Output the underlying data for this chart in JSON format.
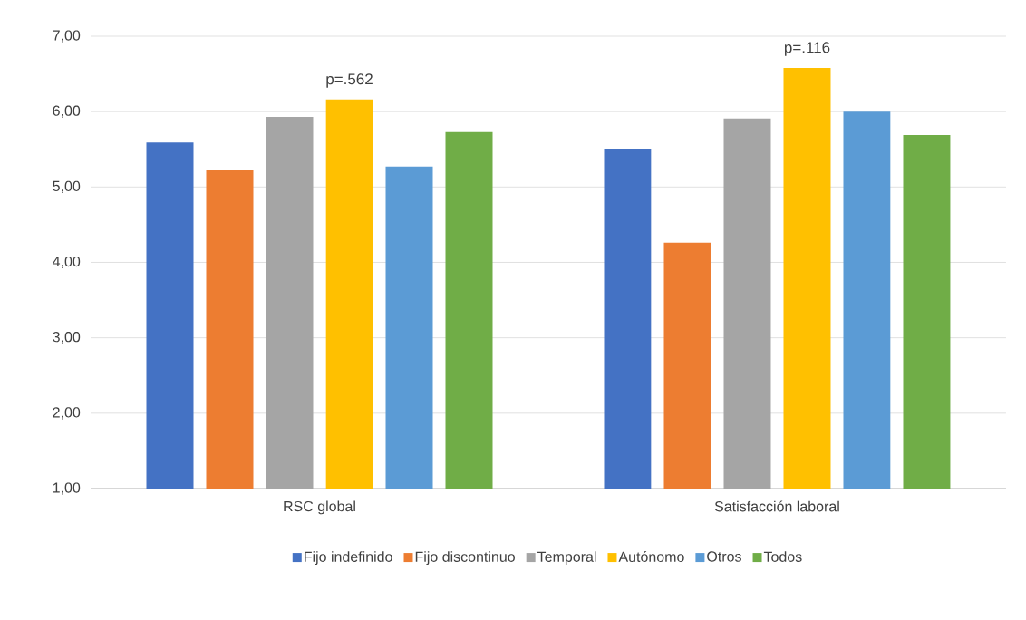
{
  "chart_data": {
    "type": "bar",
    "categories": [
      "RSC global",
      "Satisfacción laboral"
    ],
    "series": [
      {
        "name": "Fijo indefinido",
        "color": "#4472c4",
        "values": [
          5.59,
          5.51
        ]
      },
      {
        "name": "Fijo discontinuo",
        "color": "#ed7d31",
        "values": [
          5.22,
          4.26
        ]
      },
      {
        "name": "Temporal",
        "color": "#a5a5a5",
        "values": [
          5.93,
          5.91
        ]
      },
      {
        "name": "Autónomo",
        "color": "#ffc000",
        "values": [
          6.16,
          6.58
        ]
      },
      {
        "name": "Otros",
        "color": "#5b9bd5",
        "values": [
          5.27,
          6.0
        ]
      },
      {
        "name": "Todos",
        "color": "#70ad47",
        "values": [
          5.73,
          5.69
        ]
      }
    ],
    "ylim": [
      1,
      7
    ],
    "yticks": [
      {
        "value": 1,
        "label": "1,00"
      },
      {
        "value": 2,
        "label": "2,00"
      },
      {
        "value": 3,
        "label": "3,00"
      },
      {
        "value": 4,
        "label": "4,00"
      },
      {
        "value": 5,
        "label": "5,00"
      },
      {
        "value": 6,
        "label": "6,00"
      },
      {
        "value": 7,
        "label": "7,00"
      }
    ],
    "grid": "y",
    "legend": "bottom",
    "annotations": [
      "p=.562",
      "p=.116"
    ]
  }
}
